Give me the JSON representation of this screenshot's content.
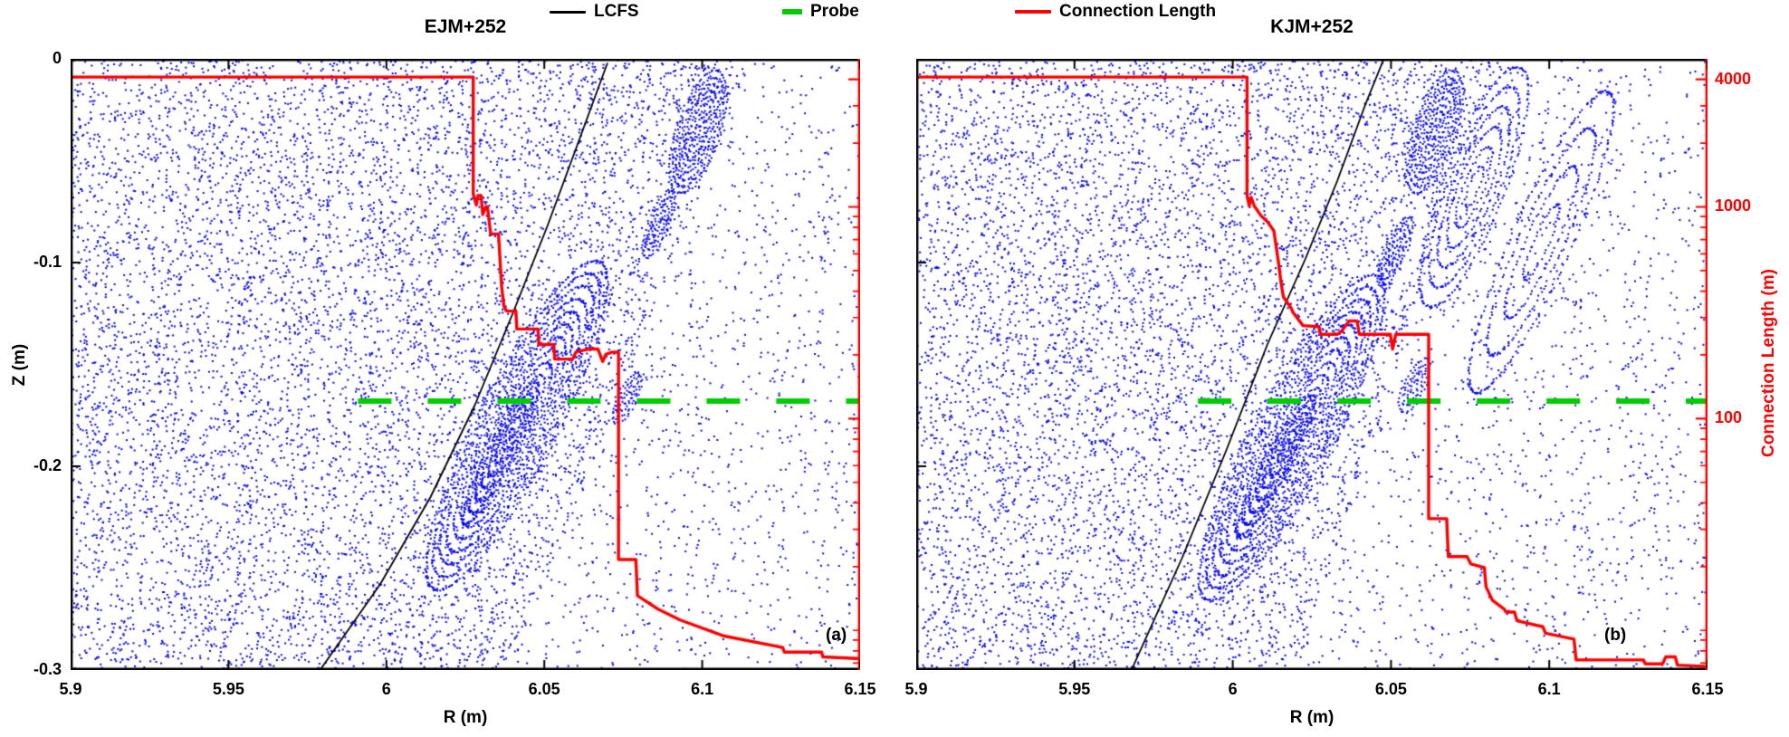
{
  "colors": {
    "scatter": "#0808ee",
    "lcfs": "#000000",
    "probe": "#00cc00",
    "connection": "#ff0000",
    "background": "#ffffff",
    "text": "#000000"
  },
  "legend": {
    "items": [
      {
        "name": "lcfs",
        "label": "LCFS",
        "color": "#000000",
        "style": "solid"
      },
      {
        "name": "probe",
        "label": "Probe",
        "color": "#00cc00",
        "style": "dashed"
      },
      {
        "name": "connection-length",
        "label": "Connection Length",
        "color": "#ff0000",
        "style": "solid"
      }
    ]
  },
  "chart_data": [
    {
      "id": "ejm",
      "type": "scatter",
      "title": "EJM+252",
      "panel_label": "(a)",
      "xlabel": "R (m)",
      "ylabel": "Z (m)",
      "xlim": [
        5.9,
        6.15
      ],
      "ylim": [
        -0.3,
        0
      ],
      "xticks": [
        5.9,
        5.95,
        6,
        6.05,
        6.1,
        6.15
      ],
      "xtick_labels": [
        "5.9",
        "5.95",
        "6",
        "6.05",
        "6.1",
        "6.15"
      ],
      "yticks": [
        0,
        -0.1,
        -0.2,
        -0.3
      ],
      "ytick_labels": [
        "0",
        "-0.1",
        "-0.2",
        "-0.3"
      ],
      "y2lim": [
        6.5,
        5000
      ],
      "y2scale": "log",
      "y2ticks": [
        4000,
        1000,
        100
      ],
      "y2minor_ticks": [
        3000,
        2000,
        900,
        800,
        700,
        600,
        500,
        400,
        300,
        200,
        90,
        80,
        70,
        60,
        50,
        40,
        30,
        20,
        10,
        9,
        8,
        7
      ],
      "probe": {
        "z": -0.168,
        "r_start": 5.991,
        "r_end": 6.15
      },
      "lcfs": [
        [
          5.979,
          -0.3
        ],
        [
          5.998,
          -0.258
        ],
        [
          6.014,
          -0.215
        ],
        [
          6.028,
          -0.17
        ],
        [
          6.04,
          -0.125
        ],
        [
          6.051,
          -0.082
        ],
        [
          6.061,
          -0.04
        ],
        [
          6.07,
          -0.002
        ]
      ],
      "connection_length": [
        [
          5.9,
          4100
        ],
        [
          6.0275,
          4100
        ],
        [
          6.0275,
          1150
        ],
        [
          6.0285,
          1020
        ],
        [
          6.029,
          1130
        ],
        [
          6.03,
          1130
        ],
        [
          6.0305,
          920
        ],
        [
          6.0315,
          1000
        ],
        [
          6.032,
          1000
        ],
        [
          6.033,
          745
        ],
        [
          6.0355,
          745
        ],
        [
          6.0365,
          420
        ],
        [
          6.0372,
          340
        ],
        [
          6.038,
          322
        ],
        [
          6.041,
          322
        ],
        [
          6.0413,
          265
        ],
        [
          6.048,
          265
        ],
        [
          6.0483,
          224
        ],
        [
          6.053,
          224
        ],
        [
          6.0533,
          191
        ],
        [
          6.059,
          191
        ],
        [
          6.06,
          206
        ],
        [
          6.064,
          213
        ],
        [
          6.067,
          213
        ],
        [
          6.0685,
          186
        ],
        [
          6.0695,
          201
        ],
        [
          6.0715,
          206
        ],
        [
          6.0735,
          206
        ],
        [
          6.0735,
          21.6
        ],
        [
          6.079,
          21.6
        ],
        [
          6.0795,
          14.6
        ],
        [
          6.086,
          12.6
        ],
        [
          6.093,
          11.2
        ],
        [
          6.107,
          9.4
        ],
        [
          6.1255,
          8.3
        ],
        [
          6.126,
          7.9
        ],
        [
          6.1378,
          7.9
        ],
        [
          6.1382,
          7.5
        ],
        [
          6.15,
          7.35
        ]
      ],
      "scatter": {
        "note": "Poincare field-line map: chaotic sea of blue dots with remnant island chains; rendered procedurally (seeded) to approximate dot texture",
        "seed": 20240,
        "n_sea": 11000,
        "edge_intercept": 0.86,
        "edge_slope": -0.3,
        "outside_density": 0.3,
        "islands": [
          {
            "cx": 0.795,
            "cy": 0.12,
            "angle": -72,
            "a_max": 0.105,
            "ratio": 0.34,
            "shells": 9
          },
          {
            "cx": 0.745,
            "cy": 0.27,
            "angle": -69,
            "a_max": 0.058,
            "ratio": 0.3,
            "shells": 5
          },
          {
            "cx": 0.705,
            "cy": 0.555,
            "angle": -65,
            "a_max": 0.045,
            "ratio": 0.35,
            "shells": 4
          },
          {
            "cx": 0.565,
            "cy": 0.6,
            "angle": -63,
            "a_max": 0.3,
            "ratio": 0.22,
            "shells": 13
          },
          {
            "cx": 0.545,
            "cy": 0.645,
            "angle": -63,
            "a_max": 0.13,
            "ratio": 0.17,
            "shells": 6
          }
        ]
      }
    },
    {
      "id": "kjm",
      "type": "scatter",
      "title": "KJM+252",
      "panel_label": "(b)",
      "xlabel": "R (m)",
      "ylabel": "Z (m)",
      "y2label": "Connection Length (m)",
      "xlim": [
        5.9,
        6.15
      ],
      "ylim": [
        -0.3,
        0
      ],
      "xticks": [
        5.9,
        5.95,
        6,
        6.05,
        6.1,
        6.15
      ],
      "xtick_labels": [
        "5.9",
        "5.95",
        "6",
        "6.05",
        "6.1",
        "6.15"
      ],
      "yticks": [
        0,
        -0.1,
        -0.2,
        -0.3
      ],
      "ytick_labels": [
        "0",
        "-0.1",
        "-0.2",
        "-0.3"
      ],
      "y2lim": [
        6.5,
        5000
      ],
      "y2scale": "log",
      "y2ticks": [
        4000,
        1000,
        100
      ],
      "y2tick_labels": [
        "4000",
        "1000",
        "100"
      ],
      "y2minor_ticks": [
        3000,
        2000,
        900,
        800,
        700,
        600,
        500,
        400,
        300,
        200,
        90,
        80,
        70,
        60,
        50,
        40,
        30,
        20,
        10,
        9,
        8,
        7
      ],
      "probe": {
        "z": -0.168,
        "r_start": 5.989,
        "r_end": 6.15
      },
      "lcfs": [
        [
          5.968,
          -0.3
        ],
        [
          5.984,
          -0.245
        ],
        [
          5.998,
          -0.192
        ],
        [
          6.011,
          -0.14
        ],
        [
          6.023,
          -0.098
        ],
        [
          6.033,
          -0.06
        ],
        [
          6.042,
          -0.022
        ],
        [
          6.048,
          0.001
        ]
      ],
      "connection_length": [
        [
          5.9,
          4100
        ],
        [
          6.0045,
          4100
        ],
        [
          6.0045,
          1140
        ],
        [
          6.0052,
          1010
        ],
        [
          6.0058,
          1110
        ],
        [
          6.0068,
          1010
        ],
        [
          6.009,
          905
        ],
        [
          6.011,
          850
        ],
        [
          6.013,
          770
        ],
        [
          6.0145,
          540
        ],
        [
          6.0152,
          445
        ],
        [
          6.016,
          375
        ],
        [
          6.0185,
          332
        ],
        [
          6.019,
          318
        ],
        [
          6.0222,
          275
        ],
        [
          6.0272,
          272
        ],
        [
          6.0278,
          250
        ],
        [
          6.033,
          250
        ],
        [
          6.0342,
          257
        ],
        [
          6.0368,
          289
        ],
        [
          6.0393,
          289
        ],
        [
          6.04,
          250
        ],
        [
          6.0498,
          250
        ],
        [
          6.0505,
          213
        ],
        [
          6.0515,
          250
        ],
        [
          6.0619,
          250
        ],
        [
          6.0619,
          33.7
        ],
        [
          6.0676,
          33.7
        ],
        [
          6.0681,
          22.3
        ],
        [
          6.074,
          22.3
        ],
        [
          6.0752,
          20.6
        ],
        [
          6.0795,
          19.8
        ],
        [
          6.08,
          16.1
        ],
        [
          6.082,
          13.9
        ],
        [
          6.0858,
          12.6
        ],
        [
          6.0863,
          12.2
        ],
        [
          6.089,
          12.2
        ],
        [
          6.0898,
          11.1
        ],
        [
          6.098,
          10.4
        ],
        [
          6.0988,
          9.7
        ],
        [
          6.1078,
          9.1
        ],
        [
          6.1085,
          7.25
        ],
        [
          6.1298,
          7.25
        ],
        [
          6.1303,
          6.95
        ],
        [
          6.1358,
          6.95
        ],
        [
          6.1368,
          7.5
        ],
        [
          6.1398,
          7.5
        ],
        [
          6.1405,
          6.85
        ],
        [
          6.15,
          6.75
        ]
      ],
      "scatter": {
        "note": "Poincare field-line map: chaotic sea of blue dots with remnant island chains; rendered procedurally (seeded) to approximate dot texture",
        "seed": 777,
        "n_sea": 11000,
        "edge_intercept": 0.74,
        "edge_slope": -0.26,
        "outside_density": 0.3,
        "islands": [
          {
            "cx": 0.655,
            "cy": 0.12,
            "angle": -72,
            "a_max": 0.105,
            "ratio": 0.34,
            "shells": 9
          },
          {
            "cx": 0.705,
            "cy": 0.21,
            "angle": -69,
            "a_max": 0.21,
            "ratio": 0.24,
            "shells": 6
          },
          {
            "cx": 0.79,
            "cy": 0.3,
            "angle": -66,
            "a_max": 0.27,
            "ratio": 0.18,
            "shells": 4
          },
          {
            "cx": 0.605,
            "cy": 0.315,
            "angle": -67,
            "a_max": 0.06,
            "ratio": 0.3,
            "shells": 5
          },
          {
            "cx": 0.63,
            "cy": 0.535,
            "angle": -65,
            "a_max": 0.048,
            "ratio": 0.35,
            "shells": 4
          },
          {
            "cx": 0.475,
            "cy": 0.62,
            "angle": -62,
            "a_max": 0.3,
            "ratio": 0.22,
            "shells": 13
          },
          {
            "cx": 0.455,
            "cy": 0.665,
            "angle": -62,
            "a_max": 0.13,
            "ratio": 0.17,
            "shells": 6
          }
        ]
      }
    }
  ]
}
